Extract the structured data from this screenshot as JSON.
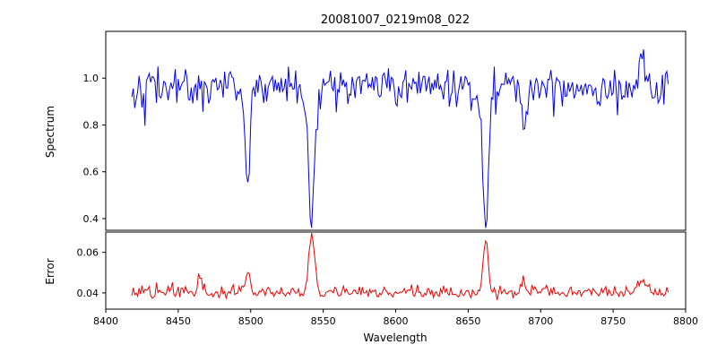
{
  "figure": {
    "title": "20081007_0219m08_022",
    "background": "#ffffff"
  },
  "chart_data": [
    {
      "type": "line",
      "panel": "spectrum",
      "title": "20081007_0219m08_022",
      "xlabel": "Wavelength",
      "ylabel": "Spectrum",
      "xlim": [
        8400,
        8800
      ],
      "ylim": [
        0.35,
        1.2
      ],
      "xticks": [
        8400,
        8450,
        8500,
        8550,
        8600,
        8650,
        8700,
        8750,
        8800
      ],
      "xtick_labels": [
        "8400",
        "8450",
        "8500",
        "8550",
        "8600",
        "8650",
        "8700",
        "8750",
        "8800"
      ],
      "yticks": [
        0.4,
        0.6,
        0.8,
        1.0
      ],
      "ytick_labels": [
        "0.4",
        "0.6",
        "0.8",
        "1.0"
      ],
      "color": "#0000ee",
      "grid": false,
      "legend": false,
      "x_start": 8418,
      "x_end": 8788,
      "x_step": 1,
      "continuum": 0.97,
      "noise_sigma": 0.033,
      "absorption_lines": [
        {
          "center": 8498.0,
          "depth": 0.42,
          "width": 1.6
        },
        {
          "center": 8542.1,
          "depth": 0.58,
          "width": 2.2
        },
        {
          "center": 8662.1,
          "depth": 0.57,
          "width": 2.0
        },
        {
          "center": 8688.6,
          "depth": 0.22,
          "width": 1.4
        }
      ],
      "emission_spikes": [
        {
          "center": 8770.0,
          "height": 0.17,
          "width": 1.2
        }
      ]
    },
    {
      "type": "line",
      "panel": "error",
      "ylabel": "Error",
      "xlim": [
        8400,
        8800
      ],
      "ylim": [
        0.032,
        0.07
      ],
      "yticks": [
        0.04,
        0.06
      ],
      "ytick_labels": [
        "0.04",
        "0.06"
      ],
      "color": "#ee0000",
      "grid": false,
      "legend": false,
      "baseline": 0.04,
      "noise_sigma": 0.0012,
      "peaks": [
        {
          "center": 8465.0,
          "height": 0.008,
          "width": 1.5
        },
        {
          "center": 8498.0,
          "height": 0.011,
          "width": 1.6
        },
        {
          "center": 8542.1,
          "height": 0.028,
          "width": 2.0
        },
        {
          "center": 8662.1,
          "height": 0.025,
          "width": 1.8
        },
        {
          "center": 8688.6,
          "height": 0.005,
          "width": 1.4
        },
        {
          "center": 8770.0,
          "height": 0.006,
          "width": 2.5
        }
      ]
    }
  ]
}
